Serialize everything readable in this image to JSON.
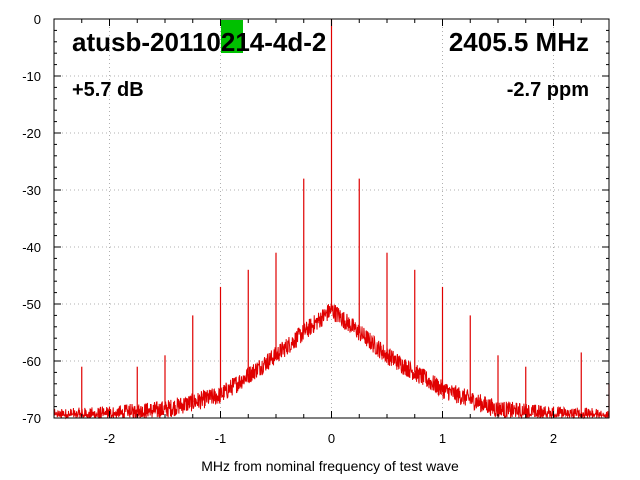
{
  "chart_data": {
    "type": "line",
    "title_left": "atusb-20110214-4d-2",
    "title_right": "2405.5 MHz",
    "annotation_left": "+5.7 dB",
    "annotation_right": "-2.7 ppm",
    "xlabel": "MHz from nominal frequency of test wave",
    "ylabel": "",
    "xlim": [
      -2.5,
      2.5
    ],
    "ylim": [
      -70,
      0
    ],
    "xticks": [
      -2,
      -1,
      0,
      1,
      2
    ],
    "xtick_labels": [
      "-2",
      "-1",
      "0",
      "1",
      "2"
    ],
    "yticks": [
      0,
      -10,
      -20,
      -30,
      -40,
      -50,
      -60,
      -70
    ],
    "ytick_labels": [
      "0",
      "-10",
      "-20",
      "-30",
      "-40",
      "-50",
      "-60",
      "-70"
    ],
    "grid": true,
    "line_color": "#e00000",
    "badge_color": "#00c000",
    "series": [
      {
        "values_note": "noise floor envelope",
        "x": [
          -2.5,
          -2.0,
          -1.5,
          -1.0,
          -0.5,
          -0.25,
          0.0,
          0.25,
          0.5,
          1.0,
          1.5,
          2.0,
          2.5
        ],
        "y": [
          -70,
          -69.5,
          -68.5,
          -66,
          -59,
          -55,
          -51,
          -55,
          -59,
          -65,
          -68.5,
          -69.5,
          -70
        ]
      },
      {
        "values_note": "spurs",
        "x": [
          -2.25,
          -2.0,
          -1.75,
          -1.5,
          -1.25,
          -1.0,
          -0.75,
          -0.5,
          -0.25,
          0.0,
          0.25,
          0.5,
          0.75,
          1.0,
          1.25,
          1.5,
          1.75,
          2.0,
          2.25,
          2.5
        ],
        "y": [
          -61,
          -68,
          -61,
          -59,
          -52,
          -47,
          -44,
          -41,
          -28,
          0,
          -28,
          -41,
          -44,
          -47,
          -52,
          -59,
          -61,
          -68,
          -58.5,
          -64
        ]
      }
    ]
  }
}
